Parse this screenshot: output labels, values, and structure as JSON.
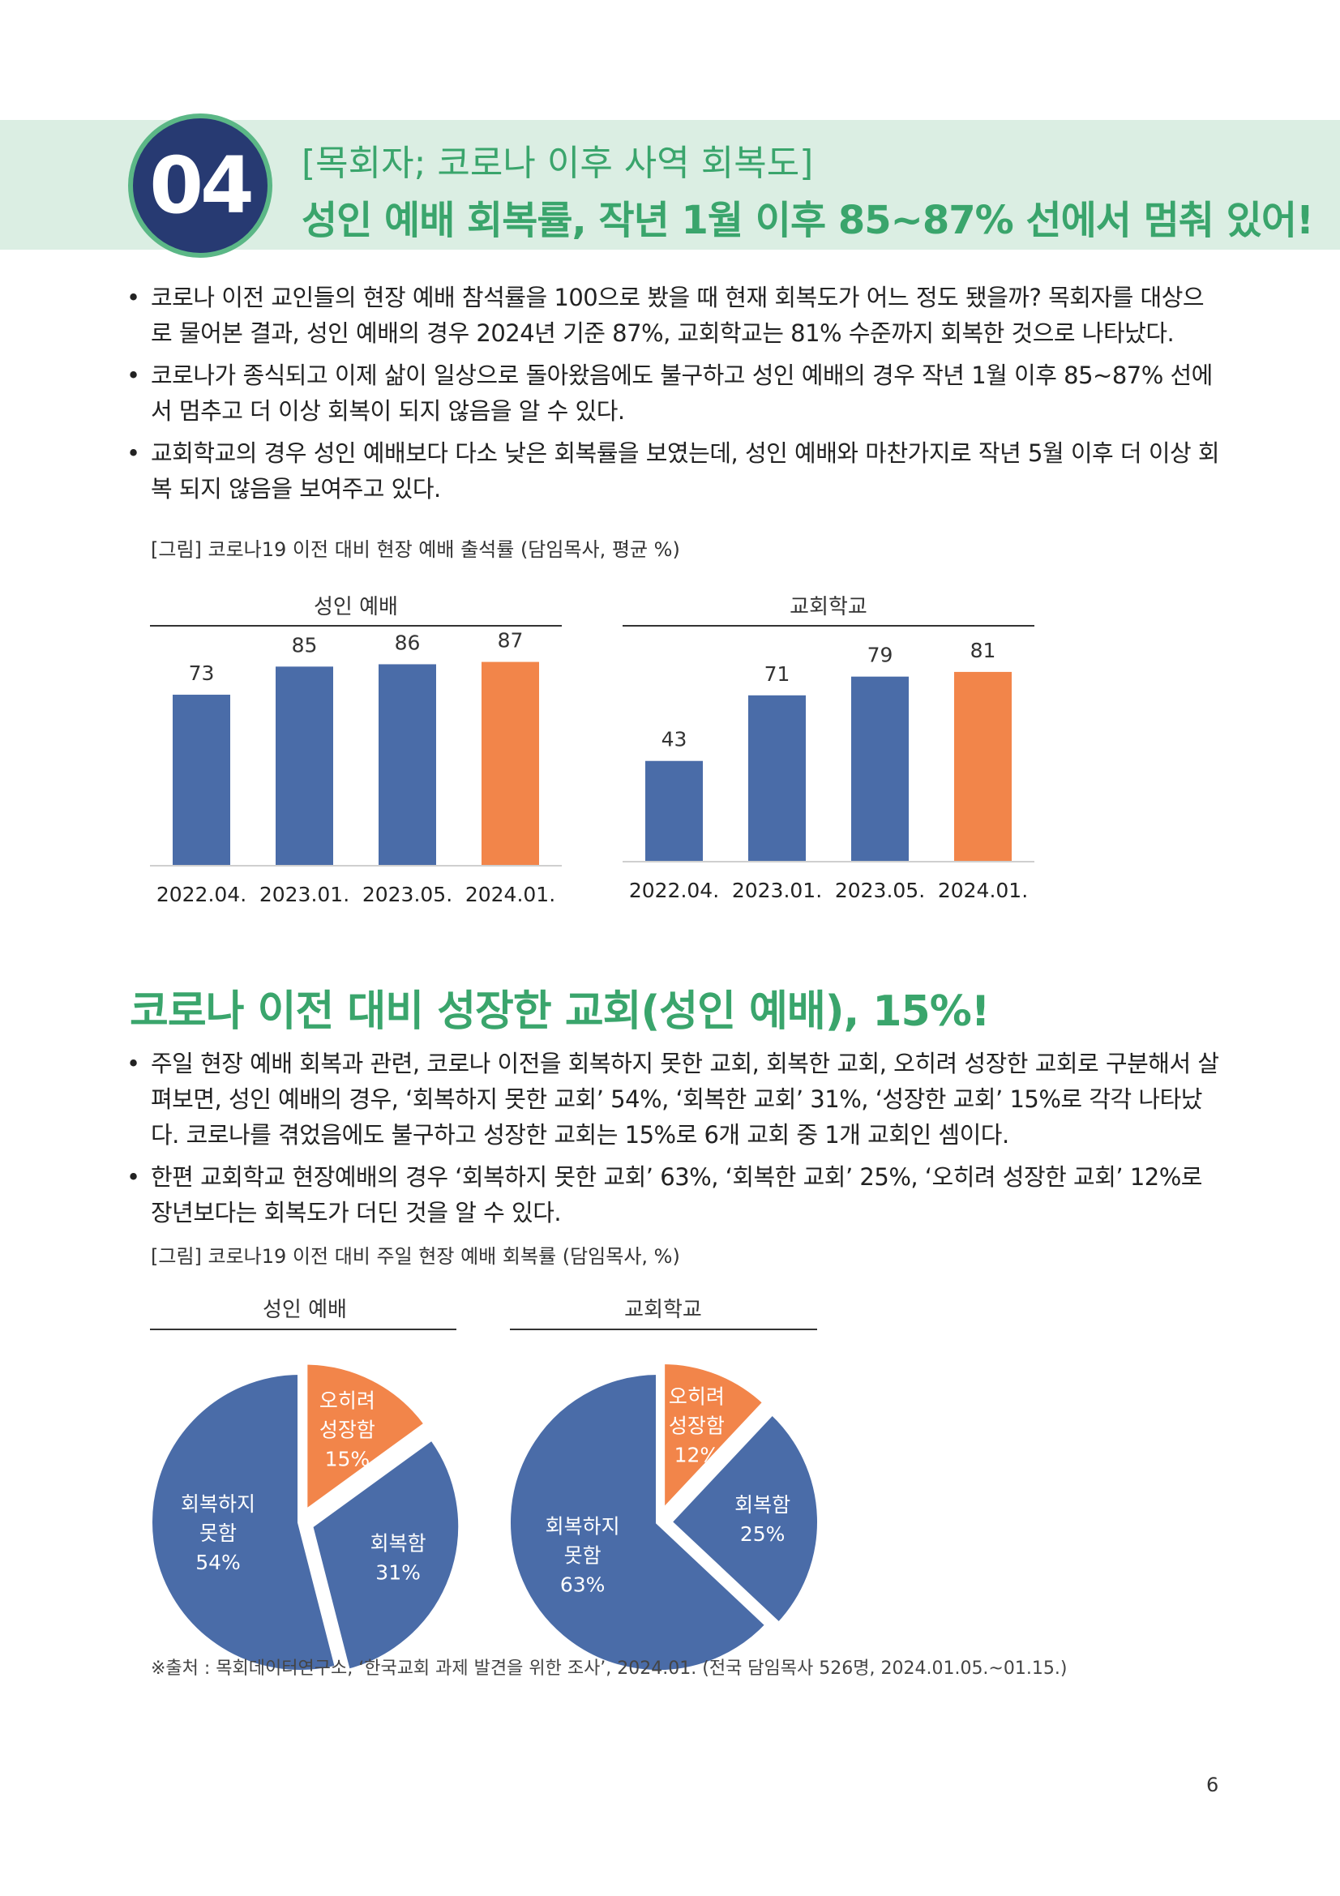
{
  "section": {
    "number": "04",
    "subtitle": "[목회자; 코로나 이후 사역 회복도]",
    "title": "성인 예배 회복률, 작년 1월 이후 85~87% 선에서 멈춰 있어!"
  },
  "bullets_1": [
    "코로나 이전 교인들의 현장 예배 참석률을 100으로 봤을 때 현재 회복도가 어느 정도 됐을까? 목회자를 대상으로 물어본 결과, 성인 예배의 경우 2024년 기준 87%, 교회학교는 81% 수준까지 회복한 것으로 나타났다.",
    "코로나가 종식되고 이제 삶이 일상으로 돌아왔음에도 불구하고 성인 예배의 경우 작년 1월 이후 85~87% 선에서 멈추고 더 이상 회복이 되지 않음을 알 수 있다.",
    "교회학교의 경우 성인 예배보다 다소 낮은 회복률을 보였는데, 성인 예배와 마찬가지로 작년 5월 이후 더 이상 회복 되지 않음을 보여주고 있다."
  ],
  "caption_1": "[그림] 코로나19 이전 대비 현장 예배 출석률 (담임목사, 평균 %)",
  "section2_title": "코로나 이전 대비 성장한 교회(성인 예배), 15%!",
  "bullets_2": [
    "주일 현장 예배 회복과 관련, 코로나 이전을 회복하지 못한 교회, 회복한 교회, 오히려 성장한 교회로 구분해서 살펴보면, 성인 예배의 경우, ‘회복하지 못한 교회’ 54%, ‘회복한 교회’ 31%, ‘성장한 교회’ 15%로 각각 나타났다. 코로나를 겪었음에도 불구하고 성장한 교회는 15%로 6개 교회 중 1개 교회인 셈이다.",
    "한편 교회학교 현장예배의 경우 ‘회복하지 못한 교회’ 63%, ‘회복한 교회’ 25%, ‘오히려 성장한 교회’ 12%로 장년보다는 회복도가 더딘 것을 알 수 있다."
  ],
  "caption_2": "[그림] 코로나19 이전 대비 주일 현장 예배 회복률 (담임목사, %)",
  "colors": {
    "blue": "#4a6ca8",
    "orange": "#f2854a",
    "green": "#3aa56c"
  },
  "chart_data": [
    {
      "type": "bar",
      "title": "성인 예배",
      "categories": [
        "2022.04.",
        "2023.01.",
        "2023.05.",
        "2024.01."
      ],
      "values": [
        73,
        85,
        86,
        87
      ],
      "highlight_index": 3
    },
    {
      "type": "bar",
      "title": "교회학교",
      "categories": [
        "2022.04.",
        "2023.01.",
        "2023.05.",
        "2024.01."
      ],
      "values": [
        43,
        71,
        79,
        81
      ],
      "highlight_index": 3
    },
    {
      "type": "pie",
      "title": "성인 예배",
      "slices": [
        {
          "label": [
            "회복하지",
            "못함"
          ],
          "value": 54,
          "text": "54%",
          "color": "blue"
        },
        {
          "label": [
            "오히려",
            "성장함"
          ],
          "value": 15,
          "text": "15%",
          "color": "orange"
        },
        {
          "label": [
            "회복함"
          ],
          "value": 31,
          "text": "31%",
          "color": "blue"
        }
      ]
    },
    {
      "type": "pie",
      "title": "교회학교",
      "slices": [
        {
          "label": [
            "회복하지",
            "못함"
          ],
          "value": 63,
          "text": "63%",
          "color": "blue"
        },
        {
          "label": [
            "오히려",
            "성장함"
          ],
          "value": 12,
          "text": "12%",
          "color": "orange"
        },
        {
          "label": [
            "회복함"
          ],
          "value": 25,
          "text": "25%",
          "color": "blue"
        }
      ]
    }
  ],
  "source": "※출처 : 목회데이터연구소, ‘한국교회 과제 발견을 위한 조사’, 2024.01. (전국 담임목사 526명, 2024.01.05.~01.15.)",
  "page_number": "6"
}
